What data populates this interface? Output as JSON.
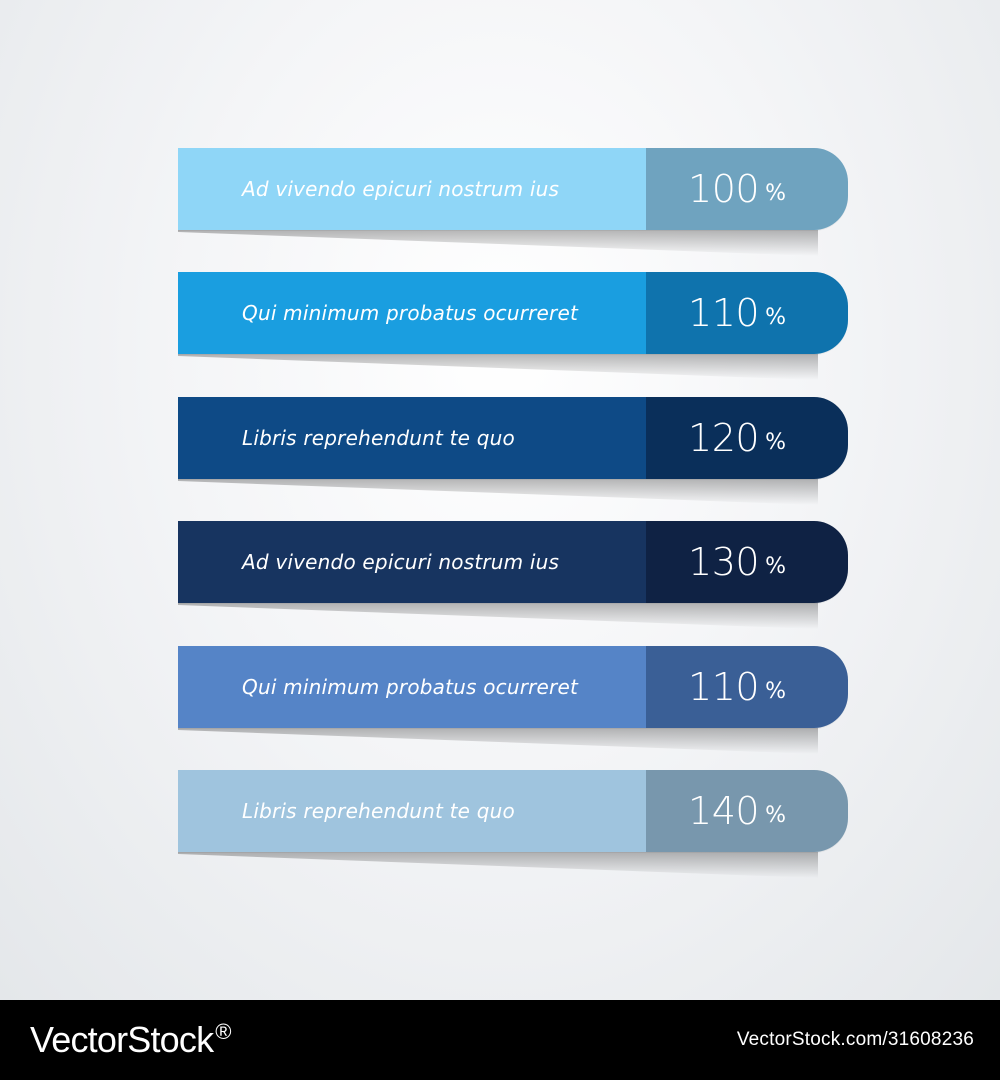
{
  "rows": [
    {
      "label": "Ad vivendo epicuri nostrum ius",
      "value": "100",
      "unit": "%",
      "main_color": "#8fd6f7",
      "value_color": "#6fa3bf"
    },
    {
      "label": "Qui minimum probatus ocurreret",
      "value": "110",
      "unit": "%",
      "main_color": "#1a9ee0",
      "value_color": "#0f73ad"
    },
    {
      "label": "Libris reprehendunt te quo",
      "value": "120",
      "unit": "%",
      "main_color": "#0e4a86",
      "value_color": "#0a2f5a"
    },
    {
      "label": "Ad vivendo epicuri nostrum ius",
      "value": "130",
      "unit": "%",
      "main_color": "#173460",
      "value_color": "#0f2244"
    },
    {
      "label": "Qui minimum probatus ocurreret",
      "value": "110",
      "unit": "%",
      "main_color": "#5584c7",
      "value_color": "#3a5f96"
    },
    {
      "label": "Libris reprehendunt te quo",
      "value": "140",
      "unit": "%",
      "main_color": "#9fc4de",
      "value_color": "#7897ad"
    }
  ],
  "footer": {
    "brand": "VectorStock",
    "brand_mark": "®",
    "url": "VectorStock.com/31608236"
  }
}
